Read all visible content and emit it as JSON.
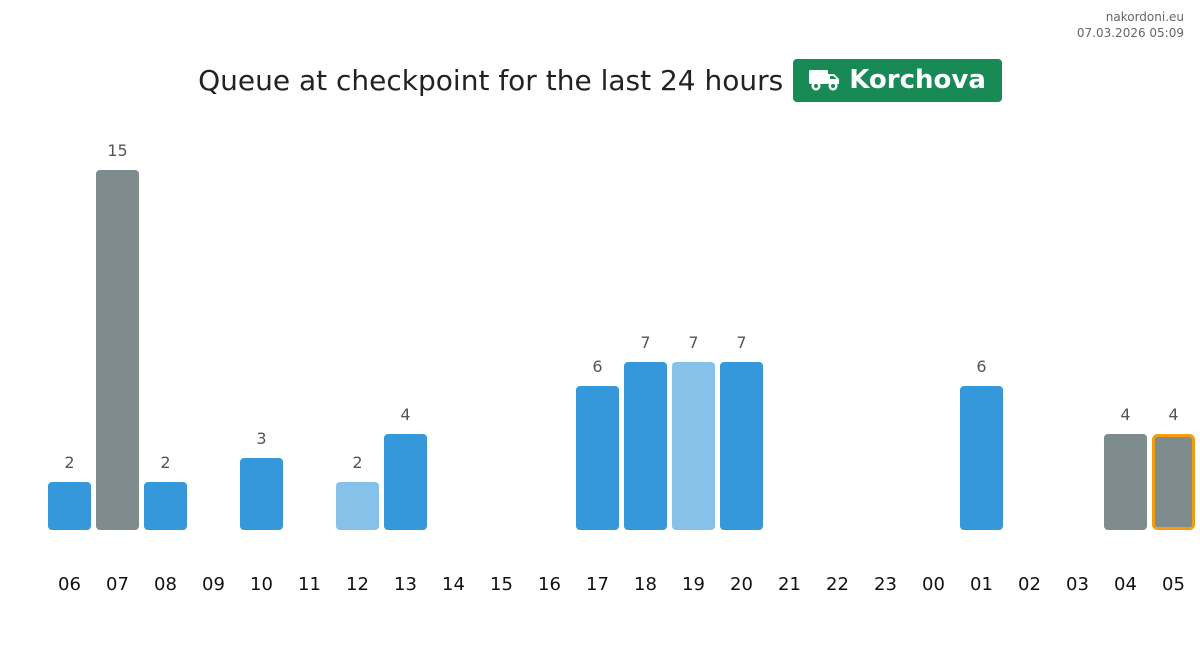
{
  "watermark": {
    "site": "nakordoni.eu",
    "timestamp": "07.03.2026 05:09"
  },
  "header": {
    "title": "Queue at checkpoint for the last 24 hours",
    "checkpoint": "Korchova",
    "badge_icon": "truck-icon"
  },
  "colors": {
    "badge_bg": "#178a55",
    "bar_blue": "#3498db",
    "bar_light": "#85c1e9",
    "bar_gray": "#7f8c8d",
    "highlight_border": "#f39c12"
  },
  "chart_data": {
    "type": "bar",
    "categories": [
      "06",
      "07",
      "08",
      "09",
      "10",
      "11",
      "12",
      "13",
      "14",
      "15",
      "16",
      "17",
      "18",
      "19",
      "20",
      "21",
      "22",
      "23",
      "00",
      "01",
      "02",
      "03",
      "04",
      "05"
    ],
    "values": [
      2,
      15,
      2,
      0,
      3,
      0,
      2,
      4,
      0,
      0,
      0,
      6,
      7,
      7,
      7,
      0,
      0,
      0,
      0,
      6,
      0,
      0,
      4,
      4
    ],
    "bar_styles": [
      "blue",
      "gray",
      "blue",
      "none",
      "blue",
      "none",
      "light",
      "blue",
      "none",
      "none",
      "none",
      "blue",
      "blue",
      "light",
      "blue",
      "none",
      "none",
      "none",
      "none",
      "blue",
      "none",
      "none",
      "gray",
      "gray"
    ],
    "highlighted": "05",
    "title": "Queue at checkpoint for the last 24 hours",
    "xlabel": "",
    "ylabel": "",
    "ylim": [
      0,
      15
    ],
    "grid": false,
    "legend": "none",
    "data_labels": true
  }
}
